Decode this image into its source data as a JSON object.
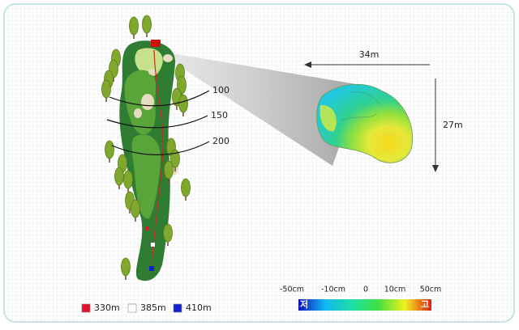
{
  "distance_markers": [
    "100",
    "150",
    "200"
  ],
  "green_dimensions": {
    "width": "34m",
    "depth": "27m"
  },
  "elevation_scale": {
    "ticks": [
      "-50cm",
      "-10cm",
      "0",
      "10cm",
      "50cm"
    ],
    "low": "저",
    "high": "고"
  },
  "tee_legend": [
    {
      "color": "#e8112d",
      "label": "330m"
    },
    {
      "color": "#ffffff",
      "label": "385m"
    },
    {
      "color": "#1122cc",
      "label": "410m"
    }
  ]
}
